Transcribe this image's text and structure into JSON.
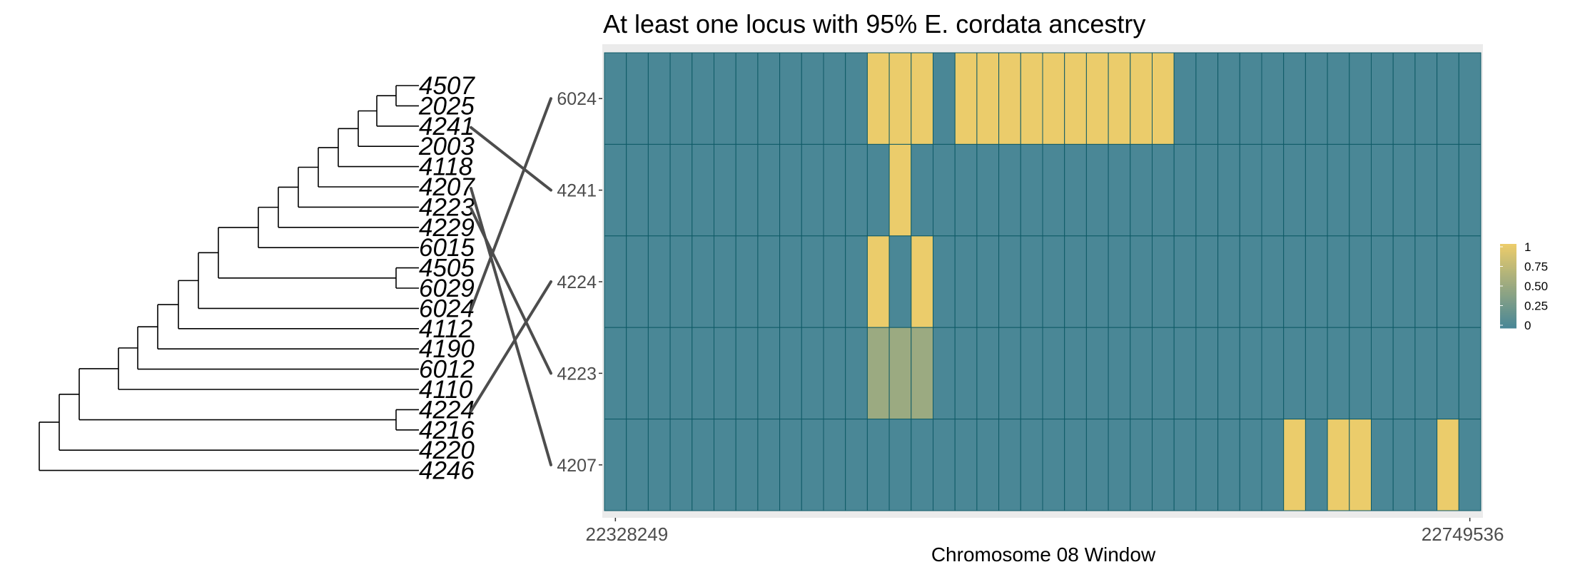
{
  "chart_data": {
    "type": "heatmap",
    "title": "At least one locus with 95% E. cordata ancestry",
    "xlabel": "Chromosome 08 Window",
    "x_tick_labels": [
      "22328249",
      "22749536"
    ],
    "rows": [
      "6024",
      "4241",
      "4224",
      "4223",
      "4207"
    ],
    "n_windows": 40,
    "values": [
      [
        0,
        0,
        0,
        0,
        0,
        0,
        0,
        0,
        0,
        0,
        0,
        0,
        1,
        1,
        1,
        0,
        1,
        1,
        1,
        1,
        1,
        1,
        1,
        1,
        1,
        1,
        0,
        0,
        0,
        0,
        0,
        0,
        0,
        0,
        0,
        0,
        0,
        0,
        0,
        0
      ],
      [
        0,
        0,
        0,
        0,
        0,
        0,
        0,
        0,
        0,
        0,
        0,
        0,
        0,
        1,
        0,
        0,
        0,
        0,
        0,
        0,
        0,
        0,
        0,
        0,
        0,
        0,
        0,
        0,
        0,
        0,
        0,
        0,
        0,
        0,
        0,
        0,
        0,
        0,
        0,
        0
      ],
      [
        0,
        0,
        0,
        0,
        0,
        0,
        0,
        0,
        0,
        0,
        0,
        0,
        1,
        0,
        1,
        0,
        0,
        0,
        0,
        0,
        0,
        0,
        0,
        0,
        0,
        0,
        0,
        0,
        0,
        0,
        0,
        0,
        0,
        0,
        0,
        0,
        0,
        0,
        0,
        0
      ],
      [
        0,
        0,
        0,
        0,
        0,
        0,
        0,
        0,
        0,
        0,
        0,
        0,
        0.5,
        0.5,
        0.5,
        0,
        0,
        0,
        0,
        0,
        0,
        0,
        0,
        0,
        0,
        0,
        0,
        0,
        0,
        0,
        0,
        0,
        0,
        0,
        0,
        0,
        0,
        0,
        0,
        0
      ],
      [
        0,
        0,
        0,
        0,
        0,
        0,
        0,
        0,
        0,
        0,
        0,
        0,
        0,
        0,
        0,
        0,
        0,
        0,
        0,
        0,
        0,
        0,
        0,
        0,
        0,
        0,
        0,
        0,
        0,
        0,
        0,
        1,
        0,
        1,
        1,
        0,
        0,
        0,
        1,
        0
      ]
    ],
    "legend": {
      "labels": [
        "1",
        "0.75",
        "0.50",
        "0.25",
        "0"
      ],
      "colors": [
        "#EBCC6B",
        "#BBB685",
        "#8A9E8A",
        "#6A9497",
        "#4A8796"
      ],
      "position": "right"
    },
    "tree": {
      "leaves": [
        "4507",
        "2025",
        "4241",
        "2003",
        "4118",
        "4207",
        "4223",
        "4229",
        "6015",
        "4505",
        "6029",
        "6024",
        "4112",
        "4190",
        "6012",
        "4110",
        "4224",
        "4216",
        "4220",
        "4246"
      ],
      "links": [
        {
          "leaf": "4241",
          "row": "4241"
        },
        {
          "leaf": "4207",
          "row": "4207"
        },
        {
          "leaf": "4223",
          "row": "4223"
        },
        {
          "leaf": "6024",
          "row": "6024"
        },
        {
          "leaf": "4224",
          "row": "4224"
        }
      ]
    },
    "colors": {
      "low": "#4A8796",
      "high": "#EBCC6B",
      "cell_border": "#0E5A66",
      "panel_bg": "#EBEBEB",
      "tree_line": "#000000",
      "connector": "#4D4D4D"
    }
  }
}
